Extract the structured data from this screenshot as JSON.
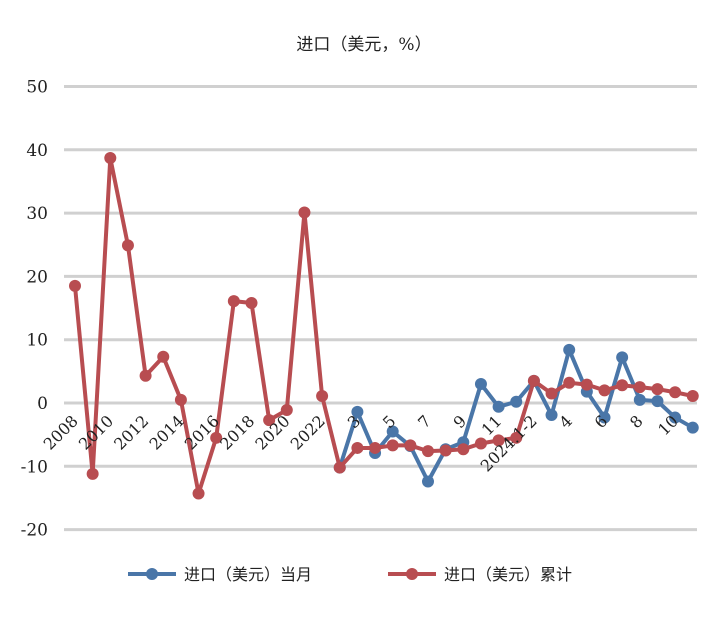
{
  "chart_data": {
    "type": "line",
    "title": "进口（美元，%）",
    "xlabel": "",
    "ylabel": "",
    "ylim": [
      -20,
      50
    ],
    "yticks": [
      -20,
      -10,
      0,
      10,
      20,
      30,
      40,
      50
    ],
    "grid": true,
    "legend_position": "bottom",
    "colors": {
      "blue": "#4a76a8",
      "red": "#b84d51",
      "grid": "#d0d0d0"
    },
    "x_labels": [
      "2008",
      "2010",
      "2012",
      "2014",
      "2016",
      "2018",
      "2020",
      "2022",
      "3",
      "5",
      "7",
      "9",
      "11",
      "2024.1-2",
      "4",
      "6",
      "8",
      "10"
    ],
    "x_label_index": [
      0,
      2,
      4,
      6,
      8,
      10,
      12,
      14,
      16,
      18,
      20,
      22,
      24,
      26,
      28,
      30,
      32,
      34
    ],
    "series": [
      {
        "name": "进口（美元）当月",
        "color": "#4a76a8",
        "start_index": 15,
        "values": [
          -10.2,
          -1.4,
          -7.9,
          -4.5,
          -6.8,
          -12.4,
          -7.3,
          -6.2,
          3.0,
          -0.6,
          0.2,
          3.5,
          -1.9,
          8.4,
          1.8,
          -2.3,
          7.2,
          0.5,
          0.3,
          -2.3,
          -3.9
        ]
      },
      {
        "name": "进口（美元）累计",
        "color": "#b84d51",
        "start_index": 0,
        "values": [
          18.5,
          -11.2,
          38.7,
          24.9,
          4.3,
          7.3,
          0.5,
          -14.3,
          -5.5,
          16.1,
          15.8,
          -2.7,
          -1.1,
          30.1,
          1.1,
          -10.2,
          -7.1,
          -7.1,
          -6.7,
          -6.7,
          -7.6,
          -7.5,
          -7.3,
          -6.4,
          -5.9,
          -5.5,
          3.5,
          1.5,
          3.2,
          2.9,
          2.0,
          2.8,
          2.5,
          2.2,
          1.7,
          1.1
        ]
      }
    ]
  }
}
